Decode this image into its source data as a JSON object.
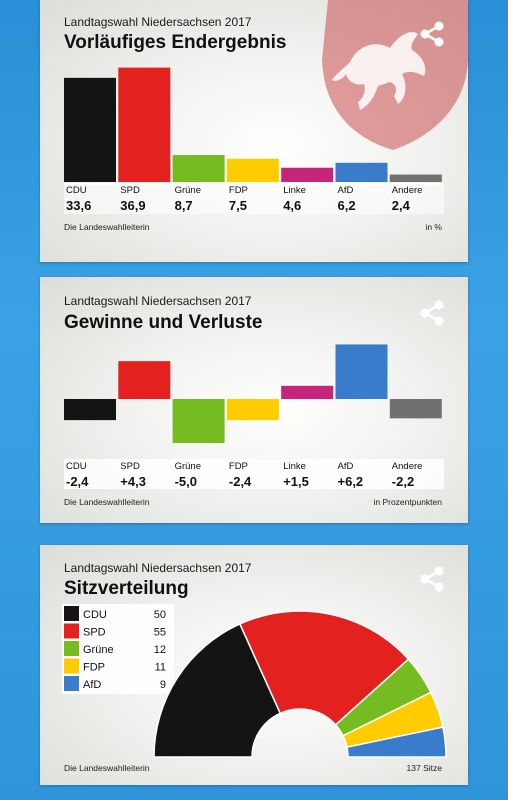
{
  "colors": {
    "CDU": "#141414",
    "SPD": "#e3211e",
    "Grüne": "#74bc1f",
    "FDP": "#ffcc00",
    "Linke": "#c5267b",
    "AfD": "#3a7ccc",
    "Andere": "#707070"
  },
  "card1": {
    "subtitle": "Landtagswahl Niedersachsen 2017",
    "title": "Vorläufiges Endergebnis",
    "source": "Die Landeswahlleiterin",
    "unit": "in %",
    "values_text": [
      "33,6",
      "36,9",
      "8,7",
      "7,5",
      "4,6",
      "6,2",
      "2,4"
    ]
  },
  "card2": {
    "subtitle": "Landtagswahl Niedersachsen 2017",
    "title": "Gewinne und Verluste",
    "source": "Die Landeswahlleiterin",
    "unit": "in Prozentpunkten",
    "values_text": [
      "-2,4",
      "+4,3",
      "-5,0",
      "-2,4",
      "+1,5",
      "+6,2",
      "-2,2"
    ]
  },
  "card3": {
    "subtitle": "Landtagswahl Niedersachsen 2017",
    "title": "Sitzverteilung",
    "source": "Die Landeswahlleiterin",
    "total": "137 Sitze"
  },
  "chart_data": [
    {
      "type": "bar",
      "title": "Vorläufiges Endergebnis",
      "categories": [
        "CDU",
        "SPD",
        "Grüne",
        "FDP",
        "Linke",
        "AfD",
        "Andere"
      ],
      "values": [
        33.6,
        36.9,
        8.7,
        7.5,
        4.6,
        6.2,
        2.4
      ],
      "unit": "in %"
    },
    {
      "type": "bar",
      "title": "Gewinne und Verluste",
      "categories": [
        "CDU",
        "SPD",
        "Grüne",
        "FDP",
        "Linke",
        "AfD",
        "Andere"
      ],
      "values": [
        -2.4,
        4.3,
        -5.0,
        -2.4,
        1.5,
        6.2,
        -2.2
      ],
      "unit": "in Prozentpunkten"
    },
    {
      "type": "pie",
      "title": "Sitzverteilung",
      "categories": [
        "CDU",
        "SPD",
        "Grüne",
        "FDP",
        "AfD"
      ],
      "values": [
        50,
        55,
        12,
        11,
        9
      ],
      "total": "137 Sitze"
    }
  ]
}
